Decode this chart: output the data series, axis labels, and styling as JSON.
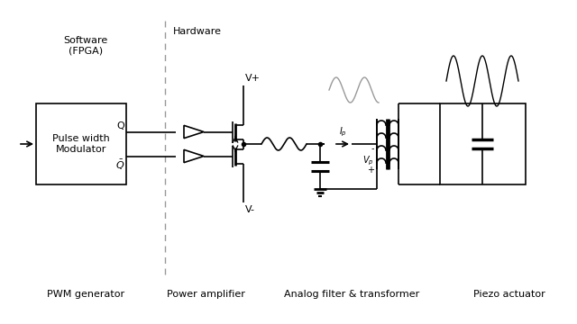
{
  "bg_color": "#ffffff",
  "line_color": "#000000",
  "gray_color": "#999999",
  "labels": {
    "software": "Software\n(FPGA)",
    "hardware": "Hardware",
    "pwm_label": "PWM generator",
    "power_amp": "Power amplifier",
    "analog_filter": "Analog filter & transformer",
    "piezo": "Piezo actuator",
    "pwm_box": "Pulse width\nModulator",
    "Q": "Q",
    "Qbar": "$\\bar{Q}$",
    "Vplus": "V+",
    "Vminus": "V-",
    "Ip": "$I_p$",
    "Vp_plus": "+",
    "Vp": "$V_p$",
    "Vp_minus": "-"
  },
  "font_size": 8,
  "small_font": 7
}
